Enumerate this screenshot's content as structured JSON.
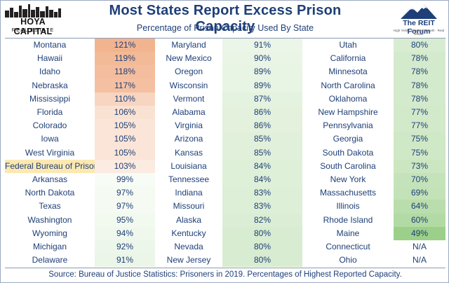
{
  "header": {
    "title": "Most States Report Excess Prison Capacity",
    "subtitle": "Percentage of Prison Capacity Used By State",
    "left_logo_name": "HOYA CAPITAL",
    "left_logo_sub": "REAL ESTATE",
    "right_logo_name": "The REIT Forum",
    "right_logo_sub": "High Yield · Dividend Growth · Real Estate"
  },
  "footer": {
    "source": "Source: Bureau of Justice Statistics: Prisoners in 2019. Percentages of Highest Reported Capacity."
  },
  "colors": {
    "text": "#1e3f78",
    "high": "#f2b48f",
    "low": "#9ccf8a",
    "neutral": "#ffffff",
    "federal_highlight": "#fce8b0"
  },
  "chart_data": {
    "type": "table",
    "title": "Most States Report Excess Prison Capacity",
    "subtitle": "Percentage of Prison Capacity Used By State",
    "columns": [
      [
        {
          "name": "Montana",
          "value": "121%",
          "pct": 121
        },
        {
          "name": "Hawaii",
          "value": "119%",
          "pct": 119
        },
        {
          "name": "Idaho",
          "value": "118%",
          "pct": 118
        },
        {
          "name": "Nebraska",
          "value": "117%",
          "pct": 117
        },
        {
          "name": "Mississippi",
          "value": "110%",
          "pct": 110
        },
        {
          "name": "Florida",
          "value": "106%",
          "pct": 106
        },
        {
          "name": "Colorado",
          "value": "105%",
          "pct": 105
        },
        {
          "name": "Iowa",
          "value": "105%",
          "pct": 105
        },
        {
          "name": "West Virginia",
          "value": "105%",
          "pct": 105
        },
        {
          "name": "Federal Bureau of Prisons",
          "value": "103%",
          "pct": 103,
          "highlight": true
        },
        {
          "name": "Arkansas",
          "value": "99%",
          "pct": 99
        },
        {
          "name": "North Dakota",
          "value": "97%",
          "pct": 97
        },
        {
          "name": "Texas",
          "value": "97%",
          "pct": 97
        },
        {
          "name": "Washington",
          "value": "95%",
          "pct": 95
        },
        {
          "name": "Wyoming",
          "value": "94%",
          "pct": 94
        },
        {
          "name": "Michigan",
          "value": "92%",
          "pct": 92
        },
        {
          "name": "Delaware",
          "value": "91%",
          "pct": 91
        }
      ],
      [
        {
          "name": "Maryland",
          "value": "91%",
          "pct": 91
        },
        {
          "name": "New Mexico",
          "value": "90%",
          "pct": 90
        },
        {
          "name": "Oregon",
          "value": "89%",
          "pct": 89
        },
        {
          "name": "Wisconsin",
          "value": "89%",
          "pct": 89
        },
        {
          "name": "Vermont",
          "value": "87%",
          "pct": 87
        },
        {
          "name": "Alabama",
          "value": "86%",
          "pct": 86
        },
        {
          "name": "Virginia",
          "value": "86%",
          "pct": 86
        },
        {
          "name": "Arizona",
          "value": "85%",
          "pct": 85
        },
        {
          "name": "Kansas",
          "value": "85%",
          "pct": 85
        },
        {
          "name": "Louisiana",
          "value": "84%",
          "pct": 84
        },
        {
          "name": "Tennessee",
          "value": "84%",
          "pct": 84
        },
        {
          "name": "Indiana",
          "value": "83%",
          "pct": 83
        },
        {
          "name": "Missouri",
          "value": "83%",
          "pct": 83
        },
        {
          "name": "Alaska",
          "value": "82%",
          "pct": 82
        },
        {
          "name": "Kentucky",
          "value": "80%",
          "pct": 80
        },
        {
          "name": "Nevada",
          "value": "80%",
          "pct": 80
        },
        {
          "name": "New Jersey",
          "value": "80%",
          "pct": 80
        }
      ],
      [
        {
          "name": "Utah",
          "value": "80%",
          "pct": 80
        },
        {
          "name": "California",
          "value": "78%",
          "pct": 78
        },
        {
          "name": "Minnesota",
          "value": "78%",
          "pct": 78
        },
        {
          "name": "North Carolina",
          "value": "78%",
          "pct": 78
        },
        {
          "name": "Oklahoma",
          "value": "78%",
          "pct": 78
        },
        {
          "name": "New Hampshire",
          "value": "77%",
          "pct": 77
        },
        {
          "name": "Pennsylvania",
          "value": "77%",
          "pct": 77
        },
        {
          "name": "Georgia",
          "value": "75%",
          "pct": 75
        },
        {
          "name": "South Dakota",
          "value": "75%",
          "pct": 75
        },
        {
          "name": "South Carolina",
          "value": "73%",
          "pct": 73
        },
        {
          "name": "New York",
          "value": "70%",
          "pct": 70
        },
        {
          "name": "Massachusetts",
          "value": "69%",
          "pct": 69
        },
        {
          "name": "Illinois",
          "value": "64%",
          "pct": 64
        },
        {
          "name": "Rhode Island",
          "value": "60%",
          "pct": 60
        },
        {
          "name": "Maine",
          "value": "49%",
          "pct": 49
        },
        {
          "name": "Connecticut",
          "value": "N/A",
          "pct": null
        },
        {
          "name": "Ohio",
          "value": "N/A",
          "pct": null
        }
      ]
    ]
  }
}
